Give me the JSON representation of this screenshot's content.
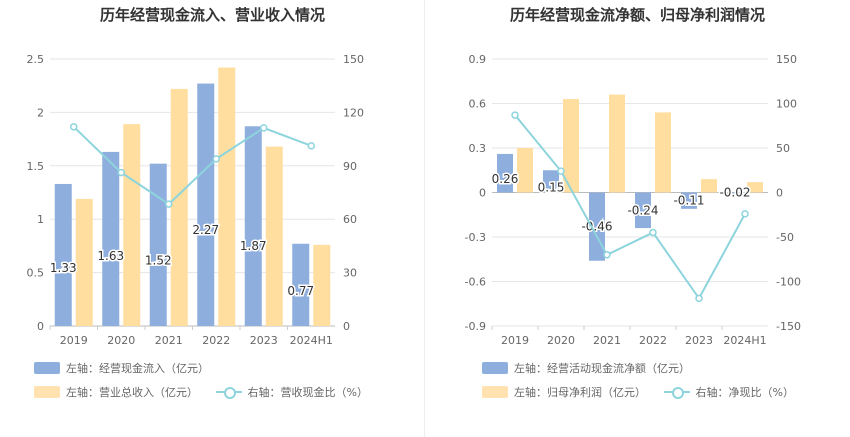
{
  "colors": {
    "bar_primary": "#8eaedd",
    "bar_secondary": "#ffdea0",
    "line": "#8dd4dd",
    "grid": "#e6e6e6",
    "axis_text": "#666666"
  },
  "chart_data": [
    {
      "type": "bar",
      "title": "历年经营现金流入、营业收入情况",
      "categories": [
        "2019",
        "2020",
        "2021",
        "2022",
        "2023",
        "2024H1"
      ],
      "left_axis": {
        "ticks": [
          "0",
          "0.5",
          "1",
          "1.5",
          "2",
          "2.5"
        ],
        "ylim": [
          0,
          2.5
        ]
      },
      "right_axis": {
        "ticks": [
          "0",
          "30",
          "60",
          "90",
          "120",
          "150"
        ],
        "ylim": [
          0,
          150
        ]
      },
      "series": [
        {
          "name": "左轴：经营现金流入（亿元）",
          "type": "bar",
          "axis": "left",
          "values": [
            1.33,
            1.63,
            1.52,
            2.27,
            1.87,
            0.77
          ],
          "data_labels": [
            "1.33",
            "1.63",
            "1.52",
            "2.27",
            "1.87",
            "0.77"
          ]
        },
        {
          "name": "左轴：营业总收入（亿元）",
          "type": "bar",
          "axis": "left",
          "values": [
            1.19,
            1.89,
            2.22,
            2.42,
            1.68,
            0.76
          ]
        },
        {
          "name": "右轴：营收现金比（%）",
          "type": "line",
          "axis": "right",
          "values": [
            111.9,
            86.2,
            68.5,
            93.9,
            111.3,
            101.2
          ]
        }
      ],
      "legend": [
        "左轴：经营现金流入（亿元）",
        "左轴：营业总收入（亿元）",
        "右轴：营收现金比（%）"
      ]
    },
    {
      "type": "bar",
      "title": "历年经营现金流净额、归母净利润情况",
      "categories": [
        "2019",
        "2020",
        "2021",
        "2022",
        "2023",
        "2024H1"
      ],
      "left_axis": {
        "ticks": [
          "-0.9",
          "-0.6",
          "-0.3",
          "0",
          "0.3",
          "0.6",
          "0.9"
        ],
        "ylim": [
          -0.9,
          0.9
        ]
      },
      "right_axis": {
        "ticks": [
          "-150",
          "-100",
          "-50",
          "0",
          "50",
          "100",
          "150"
        ],
        "ylim": [
          -150,
          150
        ]
      },
      "series": [
        {
          "name": "左轴：经营活动现金流净额（亿元）",
          "type": "bar",
          "axis": "left",
          "values": [
            0.26,
            0.15,
            -0.46,
            -0.24,
            -0.11,
            -0.02
          ],
          "data_labels": [
            "0.26",
            "0.15",
            "-0.46",
            "-0.24",
            "-0.11",
            "-0.02"
          ]
        },
        {
          "name": "左轴：归母净利润（亿元）",
          "type": "bar",
          "axis": "left",
          "values": [
            0.3,
            0.63,
            0.66,
            0.54,
            0.09,
            0.07
          ]
        },
        {
          "name": "右轴：净现比（%）",
          "type": "line",
          "axis": "right",
          "values": [
            87,
            24,
            -70,
            -45,
            -119,
            -24
          ]
        }
      ],
      "legend": [
        "左轴：经营活动现金流净额（亿元）",
        "左轴：归母净利润（亿元）",
        "右轴：净现比（%）"
      ]
    }
  ]
}
